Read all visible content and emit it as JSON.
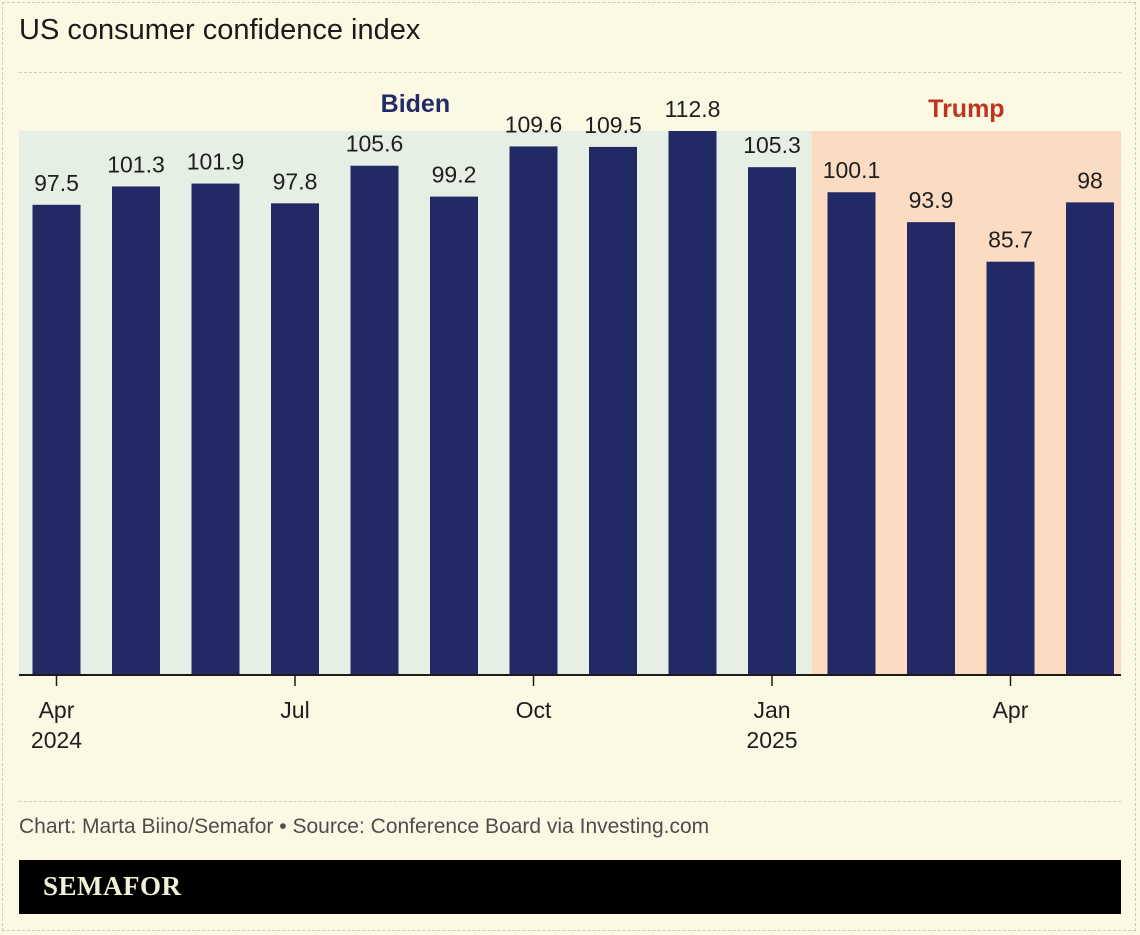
{
  "page": {
    "title": "US consumer confidence index"
  },
  "chart_data": {
    "type": "bar",
    "title": "US consumer confidence index",
    "categories": [
      "Apr 2024",
      "May 2024",
      "Jun 2024",
      "Jul 2024",
      "Aug 2024",
      "Sep 2024",
      "Oct 2024",
      "Nov 2024",
      "Dec 2024",
      "Jan 2025",
      "Feb 2025",
      "Mar 2025",
      "Apr 2025",
      "May 2025"
    ],
    "values": [
      97.5,
      101.3,
      101.9,
      97.8,
      105.6,
      99.2,
      109.6,
      109.5,
      112.8,
      105.3,
      100.1,
      93.9,
      85.7,
      98
    ],
    "value_labels": [
      "97.5",
      "101.3",
      "101.9",
      "97.8",
      "105.6",
      "99.2",
      "109.6",
      "109.5",
      "112.8",
      "105.3",
      "100.1",
      "93.9",
      "85.7",
      "98"
    ],
    "x_ticks": [
      {
        "index": 0,
        "lines": [
          "Apr",
          "2024"
        ]
      },
      {
        "index": 3,
        "lines": [
          "Jul"
        ]
      },
      {
        "index": 6,
        "lines": [
          "Oct"
        ]
      },
      {
        "index": 9,
        "lines": [
          "Jan",
          "2025"
        ]
      },
      {
        "index": 12,
        "lines": [
          "Apr"
        ]
      }
    ],
    "ylim": [
      0,
      112.8
    ],
    "xlabel": "",
    "ylabel": "",
    "grid": false,
    "bar_color": "#222a66",
    "periods": [
      {
        "label": "Biden",
        "start_index": 0,
        "end_index": 9,
        "color": "#e6efe4",
        "label_color": "#222a66"
      },
      {
        "label": "Trump",
        "start_index": 10,
        "end_index": 13,
        "color": "#fbdcc3",
        "label_color": "#c0341d"
      }
    ]
  },
  "footer": {
    "credit": "Chart: Marta Biino/Semafor • Source: Conference Board via Investing.com",
    "brand": "SEMAFOR"
  }
}
